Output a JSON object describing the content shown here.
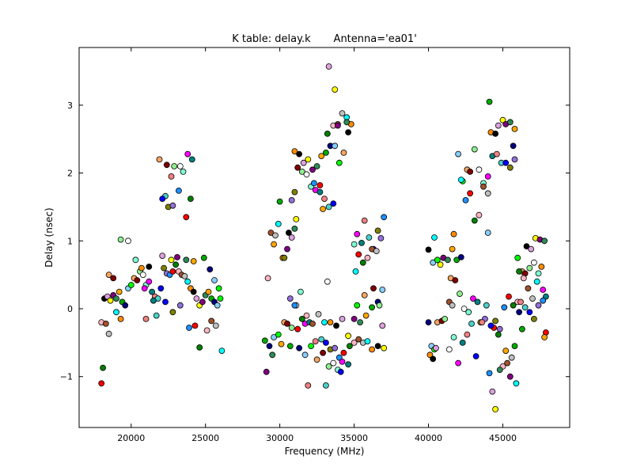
{
  "chart_data": {
    "type": "scatter",
    "title": "K table: delay.k       Antenna='ea01'",
    "xlabel": "Frequency (MHz)",
    "ylabel": "Delay (nsec)",
    "xlim": [
      16500,
      49500
    ],
    "ylim": [
      -1.75,
      3.85
    ],
    "xticks": [
      20000,
      25000,
      30000,
      35000,
      40000,
      45000
    ],
    "xtick_labels": [
      "20000",
      "25000",
      "30000",
      "35000",
      "40000",
      "45000"
    ],
    "yticks": [
      -1,
      0,
      1,
      2,
      3
    ],
    "ytick_labels": [
      "−1",
      "0",
      "1",
      "2",
      "3"
    ],
    "grid": false,
    "legend": "none",
    "colors": [
      "#ff0000",
      "#00aa00",
      "#0000ff",
      "#ffff00",
      "#ff00ff",
      "#00ffff",
      "#800000",
      "#008000",
      "#000080",
      "#808000",
      "#800080",
      "#008080",
      "#ff8c00",
      "#90ee90",
      "#ffb6c1",
      "#87cefa",
      "#9370db",
      "#2e8b57",
      "#f08080",
      "#000000",
      "#ffffff",
      "#a0522d",
      "#00ff00",
      "#1e90ff",
      "#ffa500",
      "#48d1cc",
      "#dda0dd",
      "#7fffd4",
      "#c0c0c0",
      "#f4a460"
    ],
    "points": [
      [
        18000,
        -1.1
      ],
      [
        18100,
        -0.87
      ],
      [
        18000,
        -0.2
      ],
      [
        18300,
        -0.22
      ],
      [
        18500,
        -0.37
      ],
      [
        19000,
        -0.05
      ],
      [
        19300,
        -0.15
      ],
      [
        18200,
        0.15
      ],
      [
        18400,
        0.18
      ],
      [
        18600,
        0.12
      ],
      [
        18800,
        0.2
      ],
      [
        19000,
        0.15
      ],
      [
        19200,
        0.25
      ],
      [
        19400,
        0.1
      ],
      [
        19600,
        0.05
      ],
      [
        19800,
        0.3
      ],
      [
        20000,
        0.35
      ],
      [
        20200,
        0.45
      ],
      [
        20400,
        0.42
      ],
      [
        20600,
        0.55
      ],
      [
        20800,
        0.5
      ],
      [
        21000,
        0.35
      ],
      [
        21200,
        0.4
      ],
      [
        21400,
        0.25
      ],
      [
        21600,
        0.18
      ],
      [
        21800,
        0.15
      ],
      [
        22000,
        0.3
      ],
      [
        22200,
        0.6
      ],
      [
        22400,
        0.52
      ],
      [
        22600,
        0.5
      ],
      [
        22800,
        0.55
      ],
      [
        23000,
        0.65
      ],
      [
        23200,
        0.55
      ],
      [
        23400,
        0.5
      ],
      [
        23600,
        0.48
      ],
      [
        23800,
        0.4
      ],
      [
        24000,
        0.3
      ],
      [
        24200,
        0.25
      ],
      [
        24400,
        0.15
      ],
      [
        24600,
        0.05
      ],
      [
        24800,
        0.1
      ],
      [
        25000,
        0.2
      ],
      [
        25200,
        0.25
      ],
      [
        25400,
        0.15
      ],
      [
        25600,
        0.1
      ],
      [
        25800,
        0.05
      ],
      [
        26000,
        0.15
      ],
      [
        18500,
        0.5
      ],
      [
        18800,
        0.45
      ],
      [
        19300,
        1.02
      ],
      [
        19800,
        1.0
      ],
      [
        20300,
        0.72
      ],
      [
        20900,
        0.3
      ],
      [
        21500,
        0.12
      ],
      [
        21000,
        -0.15
      ],
      [
        21700,
        -0.1
      ],
      [
        22300,
        0.1
      ],
      [
        22800,
        -0.05
      ],
      [
        23300,
        0.05
      ],
      [
        23900,
        -0.28
      ],
      [
        24300,
        -0.25
      ],
      [
        24600,
        -0.57
      ],
      [
        25100,
        -0.32
      ],
      [
        25400,
        -0.18
      ],
      [
        25700,
        -0.25
      ],
      [
        26100,
        -0.62
      ],
      [
        20700,
        0.6
      ],
      [
        21200,
        0.62
      ],
      [
        22100,
        0.78
      ],
      [
        22700,
        0.72
      ],
      [
        23100,
        0.76
      ],
      [
        23700,
        0.72
      ],
      [
        24200,
        0.7
      ],
      [
        24900,
        0.75
      ],
      [
        25300,
        0.58
      ],
      [
        25600,
        0.42
      ],
      [
        25900,
        0.3
      ],
      [
        21900,
        2.2
      ],
      [
        22400,
        2.12
      ],
      [
        22900,
        2.1
      ],
      [
        23300,
        2.1
      ],
      [
        23500,
        2.02
      ],
      [
        23800,
        2.28
      ],
      [
        24100,
        2.2
      ],
      [
        22700,
        1.95
      ],
      [
        22300,
        1.66
      ],
      [
        22100,
        1.62
      ],
      [
        22500,
        1.5
      ],
      [
        22800,
        1.52
      ],
      [
        23200,
        1.74
      ],
      [
        23700,
        1.35
      ],
      [
        24000,
        1.62
      ],
      [
        29200,
        0.45
      ],
      [
        29400,
        1.12
      ],
      [
        29700,
        1.08
      ],
      [
        29900,
        1.25
      ],
      [
        30200,
        0.75
      ],
      [
        30600,
        1.12
      ],
      [
        30800,
        1.05
      ],
      [
        31100,
        1.32
      ],
      [
        30500,
        0.88
      ],
      [
        31000,
        1.18
      ],
      [
        29600,
        0.95
      ],
      [
        29000,
        -0.47
      ],
      [
        29300,
        -0.55
      ],
      [
        29600,
        -0.42
      ],
      [
        29900,
        -0.38
      ],
      [
        30300,
        -0.2
      ],
      [
        30500,
        -0.22
      ],
      [
        30800,
        -0.28
      ],
      [
        31100,
        0.05
      ],
      [
        31400,
        0.25
      ],
      [
        31700,
        -0.22
      ],
      [
        32000,
        -0.2
      ],
      [
        32400,
        -0.48
      ],
      [
        32800,
        -0.45
      ],
      [
        33100,
        -0.5
      ],
      [
        33400,
        -0.6
      ],
      [
        33700,
        -0.58
      ],
      [
        34000,
        -0.72
      ],
      [
        34300,
        -0.65
      ],
      [
        34700,
        -0.55
      ],
      [
        35000,
        -0.5
      ],
      [
        35300,
        -0.45
      ],
      [
        35600,
        -0.5
      ],
      [
        35900,
        -0.48
      ],
      [
        36200,
        -0.6
      ],
      [
        36600,
        -0.55
      ],
      [
        36900,
        -0.25
      ],
      [
        37000,
        -0.58
      ],
      [
        29100,
        -0.93
      ],
      [
        29500,
        -0.68
      ],
      [
        30100,
        -0.52
      ],
      [
        30700,
        -0.55
      ],
      [
        31300,
        -0.58
      ],
      [
        31700,
        -0.68
      ],
      [
        32100,
        -0.55
      ],
      [
        32500,
        -0.75
      ],
      [
        32900,
        -0.65
      ],
      [
        33300,
        -0.85
      ],
      [
        33600,
        -0.8
      ],
      [
        33900,
        -0.9
      ],
      [
        34200,
        -0.78
      ],
      [
        34600,
        -0.82
      ],
      [
        31900,
        -1.13
      ],
      [
        33100,
        -1.13
      ],
      [
        34100,
        -0.93
      ],
      [
        30300,
        0.75
      ],
      [
        30700,
        0.15
      ],
      [
        31000,
        0.05
      ],
      [
        31200,
        -0.3
      ],
      [
        31500,
        -0.15
      ],
      [
        31800,
        -0.1
      ],
      [
        32200,
        -0.22
      ],
      [
        32600,
        -0.08
      ],
      [
        33000,
        -0.2
      ],
      [
        33400,
        -0.2
      ],
      [
        33800,
        -0.25
      ],
      [
        34200,
        -0.15
      ],
      [
        34600,
        -0.4
      ],
      [
        35000,
        -0.15
      ],
      [
        35400,
        -0.2
      ],
      [
        35800,
        -0.1
      ],
      [
        36200,
        0.02
      ],
      [
        36600,
        0.1
      ],
      [
        36900,
        0.28
      ],
      [
        35200,
        0.05
      ],
      [
        35700,
        0.2
      ],
      [
        36300,
        0.3
      ],
      [
        36700,
        0.05
      ],
      [
        33200,
        0.4
      ],
      [
        35000,
        0.95
      ],
      [
        35200,
        1.1
      ],
      [
        35500,
        0.97
      ],
      [
        35700,
        1.3
      ],
      [
        36000,
        1.05
      ],
      [
        36300,
        0.88
      ],
      [
        36600,
        1.15
      ],
      [
        36800,
        1.04
      ],
      [
        37000,
        1.35
      ],
      [
        35300,
        0.8
      ],
      [
        35600,
        0.68
      ],
      [
        35900,
        0.75
      ],
      [
        36200,
        0.88
      ],
      [
        36500,
        0.85
      ],
      [
        35100,
        0.55
      ],
      [
        31000,
        2.32
      ],
      [
        31300,
        2.28
      ],
      [
        31600,
        2.15
      ],
      [
        31900,
        2.2
      ],
      [
        32200,
        2.05
      ],
      [
        32500,
        2.1
      ],
      [
        32800,
        2.25
      ],
      [
        33100,
        2.3
      ],
      [
        33400,
        2.4
      ],
      [
        33700,
        2.4
      ],
      [
        34000,
        2.15
      ],
      [
        34300,
        2.3
      ],
      [
        31200,
        2.08
      ],
      [
        31500,
        2.02
      ],
      [
        31800,
        1.98
      ],
      [
        32100,
        1.8
      ],
      [
        32400,
        1.75
      ],
      [
        32700,
        1.72
      ],
      [
        33000,
        1.62
      ],
      [
        33300,
        1.5
      ],
      [
        33600,
        1.55
      ],
      [
        31000,
        1.72
      ],
      [
        30800,
        1.6
      ],
      [
        32300,
        1.85
      ],
      [
        32700,
        1.82
      ],
      [
        33200,
        2.58
      ],
      [
        33600,
        2.7
      ],
      [
        33900,
        2.72
      ],
      [
        34200,
        2.88
      ],
      [
        34500,
        2.82
      ],
      [
        34800,
        2.72
      ],
      [
        34600,
        2.6
      ],
      [
        33300,
        3.57
      ],
      [
        33700,
        3.23
      ],
      [
        33900,
        2.7
      ],
      [
        34500,
        2.75
      ],
      [
        32900,
        1.47
      ],
      [
        30000,
        1.58
      ],
      [
        40000,
        -0.2
      ],
      [
        40200,
        -0.55
      ],
      [
        40400,
        -0.6
      ],
      [
        40600,
        -0.2
      ],
      [
        40900,
        -0.18
      ],
      [
        41100,
        -0.15
      ],
      [
        41400,
        -0.6
      ],
      [
        41700,
        -0.42
      ],
      [
        42000,
        -0.8
      ],
      [
        42300,
        -0.5
      ],
      [
        42600,
        -0.38
      ],
      [
        42900,
        -0.22
      ],
      [
        43200,
        -0.7
      ],
      [
        43500,
        -0.2
      ],
      [
        43800,
        -0.15
      ],
      [
        44100,
        -0.95
      ],
      [
        44400,
        -0.28
      ],
      [
        44700,
        -0.38
      ],
      [
        45000,
        -0.85
      ],
      [
        45300,
        -0.8
      ],
      [
        45600,
        -0.72
      ],
      [
        45900,
        -1.1
      ],
      [
        40100,
        -0.68
      ],
      [
        40300,
        -0.74
      ],
      [
        40500,
        -0.58
      ],
      [
        40800,
        0.65
      ],
      [
        41000,
        0.75
      ],
      [
        41300,
        0.72
      ],
      [
        41600,
        0.88
      ],
      [
        41900,
        0.72
      ],
      [
        42200,
        0.76
      ],
      [
        40300,
        0.68
      ],
      [
        40600,
        0.72
      ],
      [
        41500,
        0.45
      ],
      [
        41800,
        0.42
      ],
      [
        42100,
        0.22
      ],
      [
        42400,
        0.0
      ],
      [
        42700,
        -0.05
      ],
      [
        43000,
        0.15
      ],
      [
        43300,
        0.1
      ],
      [
        43600,
        -0.2
      ],
      [
        43900,
        0.05
      ],
      [
        44200,
        -0.25
      ],
      [
        44500,
        -0.18
      ],
      [
        44800,
        -0.3
      ],
      [
        45100,
        0.02
      ],
      [
        45400,
        0.18
      ],
      [
        45700,
        0.05
      ],
      [
        46000,
        0.1
      ],
      [
        41400,
        0.1
      ],
      [
        41600,
        0.05
      ],
      [
        40400,
        1.05
      ],
      [
        41700,
        1.1
      ],
      [
        40000,
        0.87
      ],
      [
        44300,
        -1.22
      ],
      [
        44500,
        -1.48
      ],
      [
        45500,
        -1.0
      ],
      [
        44800,
        -0.9
      ],
      [
        45200,
        -0.62
      ],
      [
        45800,
        -0.55
      ],
      [
        46100,
        -0.05
      ],
      [
        42000,
        2.28
      ],
      [
        42300,
        1.88
      ],
      [
        42600,
        2.05
      ],
      [
        42800,
        2.02
      ],
      [
        43100,
        2.35
      ],
      [
        43400,
        2.05
      ],
      [
        43700,
        1.85
      ],
      [
        44000,
        1.95
      ],
      [
        44300,
        2.25
      ],
      [
        44600,
        2.28
      ],
      [
        44900,
        2.15
      ],
      [
        45200,
        2.15
      ],
      [
        45500,
        2.08
      ],
      [
        45800,
        2.2
      ],
      [
        42500,
        1.6
      ],
      [
        42800,
        1.7
      ],
      [
        43100,
        1.3
      ],
      [
        43400,
        1.38
      ],
      [
        43700,
        1.8
      ],
      [
        44000,
        1.7
      ],
      [
        42200,
        1.9
      ],
      [
        44200,
        2.6
      ],
      [
        44500,
        2.58
      ],
      [
        44700,
        2.7
      ],
      [
        45000,
        2.78
      ],
      [
        45200,
        2.72
      ],
      [
        45500,
        2.75
      ],
      [
        45800,
        2.65
      ],
      [
        44100,
        3.05
      ],
      [
        45700,
        2.4
      ],
      [
        44000,
        1.12
      ],
      [
        46000,
        0.75
      ],
      [
        46300,
        0.55
      ],
      [
        46500,
        0.52
      ],
      [
        46800,
        0.6
      ],
      [
        47100,
        0.68
      ],
      [
        47400,
        0.52
      ],
      [
        47700,
        0.28
      ],
      [
        47900,
        0.18
      ],
      [
        46200,
        0.1
      ],
      [
        46500,
        0.02
      ],
      [
        46800,
        -0.05
      ],
      [
        47100,
        -0.15
      ],
      [
        47400,
        0.05
      ],
      [
        47700,
        0.12
      ],
      [
        47900,
        -0.35
      ],
      [
        46100,
        0.55
      ],
      [
        46400,
        0.45
      ],
      [
        46700,
        0.3
      ],
      [
        47000,
        0.15
      ],
      [
        47300,
        0.4
      ],
      [
        47600,
        0.62
      ],
      [
        46600,
        0.92
      ],
      [
        46900,
        0.88
      ],
      [
        47200,
        1.04
      ],
      [
        47500,
        1.02
      ],
      [
        47800,
        1.0
      ],
      [
        47800,
        -0.42
      ],
      [
        46300,
        -0.3
      ]
    ]
  }
}
